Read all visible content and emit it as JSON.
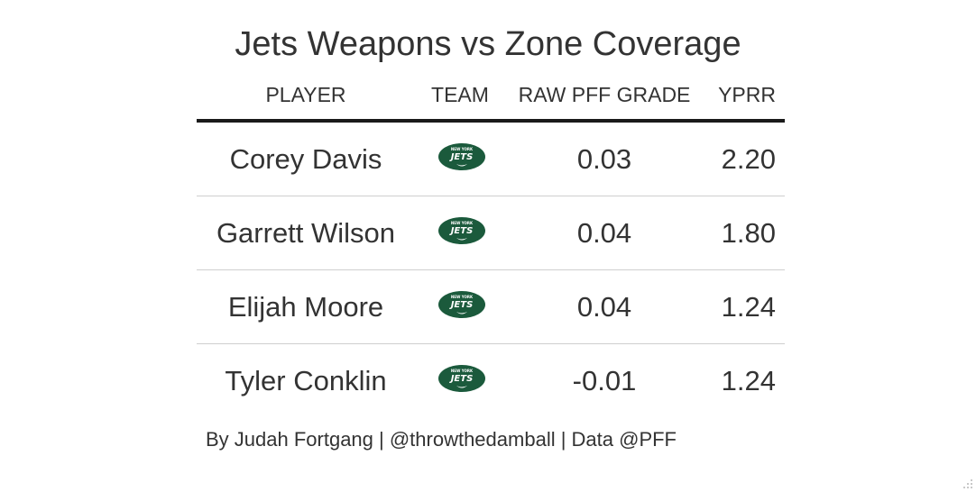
{
  "chart_data": {
    "type": "table",
    "title": "Jets Weapons vs Zone Coverage",
    "columns": [
      "PLAYER",
      "TEAM",
      "RAW PFF GRADE",
      "YPRR"
    ],
    "rows": [
      {
        "player": "Corey Davis",
        "team": "NYJ",
        "team_logo": "jets-logo-icon",
        "grade": "0.03",
        "yprr": "2.20"
      },
      {
        "player": "Garrett Wilson",
        "team": "NYJ",
        "team_logo": "jets-logo-icon",
        "grade": "0.04",
        "yprr": "1.80"
      },
      {
        "player": "Elijah Moore",
        "team": "NYJ",
        "team_logo": "jets-logo-icon",
        "grade": "0.04",
        "yprr": "1.24"
      },
      {
        "player": "Tyler Conklin",
        "team": "NYJ",
        "team_logo": "jets-logo-icon",
        "grade": "-0.01",
        "yprr": "1.24"
      }
    ],
    "source_note": "By Judah Fortgang | @throwthedamball | Data @PFF"
  },
  "colors": {
    "text": "#333333",
    "header_rule": "#1a1a1a",
    "row_rule": "#cfcfcf",
    "jets_green": "#1b5a3c"
  }
}
